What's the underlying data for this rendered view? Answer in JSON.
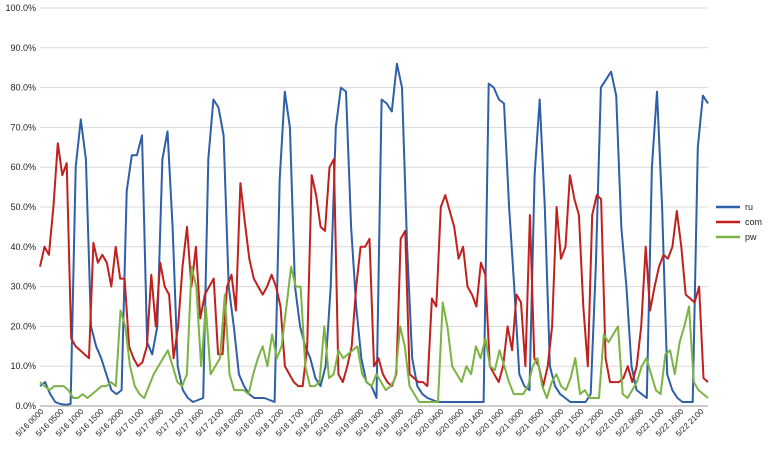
{
  "chart_data": {
    "type": "line",
    "title": "",
    "xlabel": "",
    "ylabel": "",
    "ylim": [
      0,
      100
    ],
    "yticks": [
      "0.0%",
      "10.0%",
      "20.0%",
      "30.0%",
      "40.0%",
      "50.0%",
      "60.0%",
      "70.0%",
      "80.0%",
      "90.0%",
      "100.0%"
    ],
    "xticklabels": [
      "5/16 0000",
      "5/16 0500",
      "5/16 1000",
      "5/16 1500",
      "5/16 2000",
      "5/17 0100",
      "5/17 0600",
      "5/17 1100",
      "5/17 1600",
      "5/17 2100",
      "5/18 0200",
      "5/18 0700",
      "5/18 1200",
      "5/18 1700",
      "5/18 2200",
      "5/19 0300",
      "5/19 0800",
      "5/19 1300",
      "5/19 1800",
      "5/19 2300",
      "5/20 0400",
      "5/20 0900",
      "5/20 1400",
      "5/20 1900",
      "5/21 0000",
      "5/21 0500",
      "5/21 1000",
      "5/21 1500",
      "5/21 2000",
      "5/22 0100",
      "5/22 0600",
      "5/22 1100",
      "5/22 1600",
      "5/22 2100"
    ],
    "grid": true,
    "legend_position": "right",
    "series": [
      {
        "name": "ru",
        "color": "#2e5fa8",
        "values": [
          5,
          6,
          3,
          1,
          0.5,
          0.3,
          0.5,
          60,
          72,
          62,
          20,
          15,
          12,
          8,
          4,
          3,
          4,
          54,
          63,
          63,
          68,
          16,
          13,
          20,
          62,
          69,
          45,
          10,
          4,
          2,
          1,
          1.5,
          2,
          62,
          77,
          75,
          68,
          30,
          20,
          8,
          5,
          3,
          2,
          2,
          2,
          1.5,
          1,
          57,
          79,
          70,
          30,
          20,
          15,
          12,
          7,
          5,
          10,
          30,
          70,
          80,
          79,
          45,
          25,
          12,
          6,
          5,
          2,
          77,
          76,
          74,
          86,
          80,
          40,
          12,
          5,
          3,
          2,
          1.5,
          1,
          1,
          1,
          1,
          1,
          1,
          1,
          1,
          1,
          1,
          81,
          80,
          77,
          76,
          50,
          30,
          8,
          5,
          4,
          58,
          77,
          50,
          10,
          5,
          3,
          2,
          1,
          1,
          1,
          1,
          3,
          35,
          80,
          82,
          84,
          78,
          45,
          30,
          10,
          4,
          3,
          2,
          60,
          79,
          50,
          8,
          4,
          2,
          1,
          1,
          1,
          65,
          78,
          76
        ]
      },
      {
        "name": "com",
        "color": "#c0201e",
        "values": [
          35,
          40,
          38,
          50,
          66,
          58,
          61,
          17,
          15,
          14,
          13,
          12,
          41,
          36,
          38,
          36,
          30,
          40,
          32,
          32,
          15,
          12,
          10,
          11,
          15,
          33,
          20,
          36,
          30,
          28,
          12,
          20,
          35,
          45,
          30,
          40,
          22,
          28,
          30,
          32,
          13,
          13,
          30,
          33,
          24,
          56,
          46,
          37,
          32,
          30,
          28,
          30,
          33,
          30,
          25,
          10,
          8,
          6,
          5,
          5,
          15,
          58,
          53,
          45,
          44,
          60,
          62,
          8,
          6,
          10,
          15,
          30,
          40,
          40,
          42,
          10,
          12,
          8,
          6,
          5,
          8,
          42,
          44,
          8,
          7,
          6,
          6,
          5,
          27,
          25,
          50,
          53,
          49,
          45,
          37,
          40,
          30,
          28,
          25,
          36,
          33,
          10,
          8,
          6,
          10,
          20,
          14,
          28,
          26,
          10,
          48,
          12,
          10,
          5,
          10,
          20,
          50,
          37,
          40,
          58,
          52,
          48,
          25,
          10,
          48,
          53,
          52,
          12,
          6,
          6,
          6,
          7,
          10,
          6,
          10,
          20,
          40,
          24,
          30,
          35,
          38,
          37,
          40,
          49,
          40,
          28,
          27,
          26,
          30,
          7,
          6
        ]
      },
      {
        "name": "pw",
        "color": "#7cb342",
        "values": [
          6,
          5,
          4,
          5,
          5,
          5,
          4,
          2,
          2,
          3,
          2,
          3,
          4,
          5,
          5,
          6,
          5,
          24,
          20,
          10,
          5,
          3,
          2,
          5,
          8,
          10,
          12,
          14,
          10,
          6,
          5,
          8,
          35,
          30,
          10,
          25,
          8,
          10,
          12,
          28,
          8,
          4,
          4,
          4,
          3,
          8,
          12,
          15,
          10,
          18,
          12,
          15,
          25,
          35,
          30,
          30,
          10,
          5,
          5,
          6,
          20,
          7,
          8,
          14,
          12,
          13,
          14,
          15,
          8,
          6,
          5,
          8,
          6,
          4,
          5,
          7,
          20,
          15,
          5,
          3,
          1,
          1,
          1,
          1,
          1,
          26,
          20,
          10,
          8,
          6,
          10,
          8,
          15,
          12,
          17,
          10,
          9,
          14,
          10,
          6,
          3,
          3,
          3,
          5,
          10,
          12,
          5,
          2,
          6,
          8,
          5,
          4,
          7,
          12,
          3,
          4,
          2,
          2,
          2,
          18,
          16,
          18,
          20,
          3,
          2,
          4,
          6,
          10,
          12,
          8,
          4,
          3,
          13,
          14,
          8,
          16,
          20,
          25,
          6,
          4,
          3,
          2
        ]
      }
    ],
    "legend": [
      "ru",
      "com",
      "pw"
    ]
  }
}
